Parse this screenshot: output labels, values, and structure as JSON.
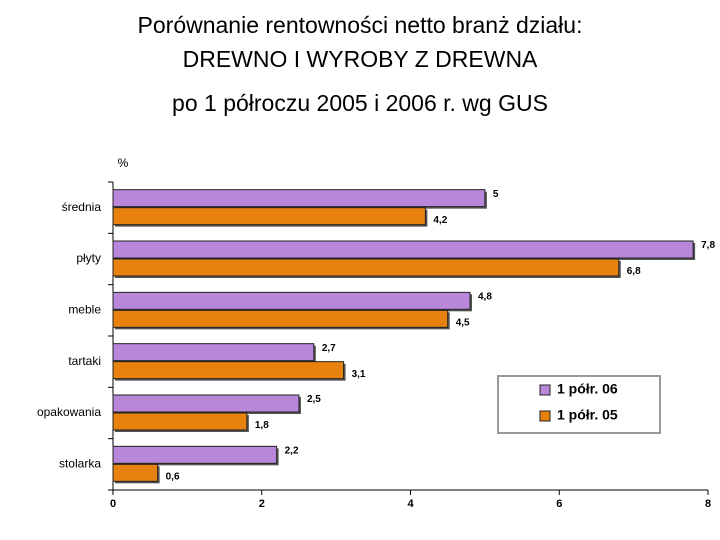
{
  "chart_data": {
    "type": "hbar",
    "title": [
      "Porównanie rentowności netto branż działu:",
      "DREWNO I WYROBY Z DREWNA"
    ],
    "subtitle": "po 1 półroczu 2005 i 2006 r. wg GUS",
    "unit_label": "%",
    "categories": [
      "średnia",
      "płyty",
      "meble",
      "tartaki",
      "opakowania",
      "stolarka"
    ],
    "series": [
      {
        "name": "1 półr. 06",
        "color": "#b987d9",
        "values": [
          5,
          7.8,
          4.8,
          2.7,
          2.5,
          2.2
        ],
        "value_labels": [
          "5",
          "7,8",
          "4,8",
          "2,7",
          "2,5",
          "2,2"
        ]
      },
      {
        "name": "1 półr. 05",
        "color": "#e8820e",
        "values": [
          4.2,
          6.8,
          4.5,
          3.1,
          1.8,
          0.6
        ],
        "value_labels": [
          "4,2",
          "6,8",
          "4,5",
          "3,1",
          "1,8",
          "0,6"
        ]
      }
    ],
    "xlim": [
      0,
      8
    ],
    "xticks": [
      0,
      2,
      4,
      6,
      8
    ],
    "grid": false
  }
}
